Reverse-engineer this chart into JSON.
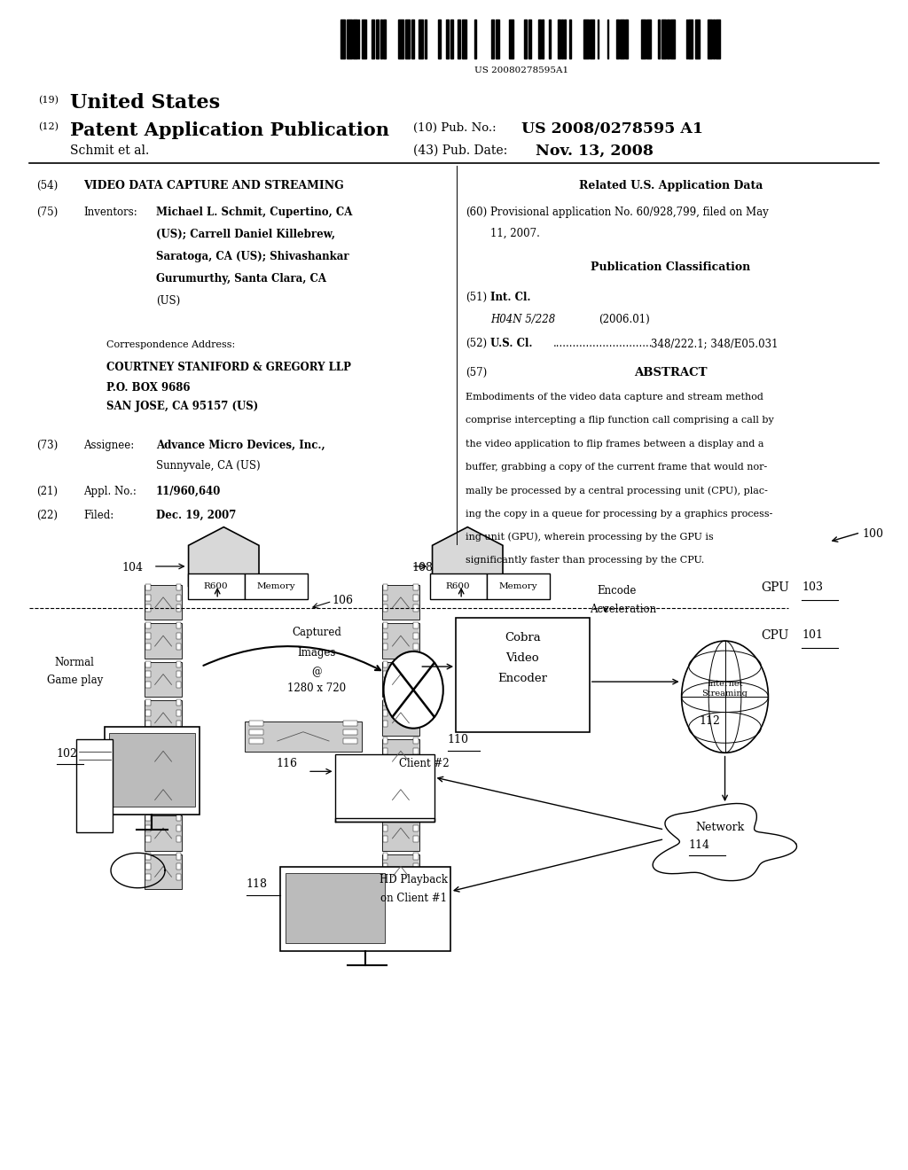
{
  "bg_color": "#ffffff",
  "figsize": [
    10.24,
    13.2
  ],
  "dpi": 100,
  "barcode_text": "US 20080278595A1",
  "header_19": "(19)",
  "header_us": "United States",
  "header_12": "(12)",
  "header_pat": "Patent Application Publication",
  "header_10": "(10) Pub. No.:",
  "header_pubno": "US 2008/0278595 A1",
  "header_schmit": "Schmit et al.",
  "header_43": "(43) Pub. Date:",
  "header_date": "Nov. 13, 2008",
  "field54_label": "(54)",
  "field54_title": "VIDEO DATA CAPTURE AND STREAMING",
  "field75_label": "(75)",
  "field75_key": "Inventors:",
  "field75_val_line0": "Michael L. Schmit, Cupertino, CA",
  "field75_val_line1": "(US); Carrell Daniel Killebrew,",
  "field75_val_line2": "Saratoga, CA (US); Shivashankar",
  "field75_val_line3": "Gurumurthy, Santa Clara, CA",
  "field75_val_line4": "(US)",
  "corr_label": "Correspondence Address:",
  "corr_line1": "COURTNEY STANIFORD & GREGORY LLP",
  "corr_line2": "P.O. BOX 9686",
  "corr_line3": "SAN JOSE, CA 95157 (US)",
  "field73_label": "(73)",
  "field73_key": "Assignee:",
  "field73_val1": "Advance Micro Devices, Inc.,",
  "field73_val2": "Sunnyvale, CA (US)",
  "field21_label": "(21)",
  "field21_key": "Appl. No.:",
  "field21_val": "11/960,640",
  "field22_label": "(22)",
  "field22_key": "Filed:",
  "field22_val": "Dec. 19, 2007",
  "related_title": "Related U.S. Application Data",
  "field60_label": "(60)",
  "field60_val1": "Provisional application No. 60/928,799, filed on May",
  "field60_val2": "11, 2007.",
  "pubclass_title": "Publication Classification",
  "field51_label": "(51)",
  "field51_key": "Int. Cl.",
  "field51_class": "H04N 5/228",
  "field51_year": "(2006.01)",
  "field52_label": "(52)",
  "field52_key": "U.S. Cl.",
  "field52_dots": "..............................",
  "field52_val": "348/222.1; 348/E05.031",
  "field57_label": "(57)",
  "field57_title": "ABSTRACT",
  "abstract_lines": [
    "Embodiments of the video data capture and stream method",
    "comprise intercepting a flip function call comprising a call by",
    "the video application to flip frames between a display and a",
    "buffer, grabbing a copy of the current frame that would nor-",
    "mally be processed by a central processing unit (CPU), plac-",
    "ing the copy in a queue for processing by a graphics process-",
    "ing unit (GPU), wherein processing by the GPU is",
    "significantly faster than processing by the CPU."
  ]
}
